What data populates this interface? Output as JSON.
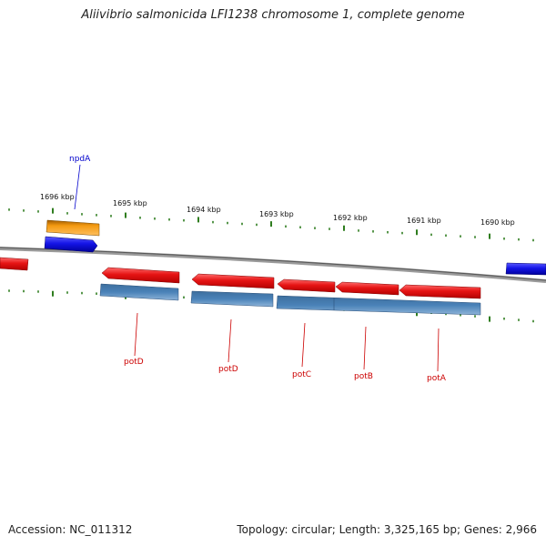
{
  "title": "Aliivibrio salmonicida LFI1238 chromosome 1, complete genome",
  "footer": {
    "accession": "Accession: NC_011312",
    "summary": "Topology: circular; Length: 3,325,165 bp; Genes: 2,966"
  },
  "colors": {
    "backbone": "#8a8a8a",
    "tick": "#2f7d1f",
    "gene_forward_blue": "#1414e6",
    "gene_reverse_red": "#e61414",
    "cds_steelblue": "#4a82b8",
    "other_orange": "#f39a10",
    "label_red": "#cc0000",
    "label_blue": "#0000cc"
  },
  "tick_labels": [
    "1696 kbp",
    "1695 kbp",
    "1694 kbp",
    "1693 kbp",
    "1692 kbp",
    "1691 kbp",
    "1690 kbp"
  ],
  "gene_labels": [
    "npdA",
    "potD",
    "potD",
    "potC",
    "potB",
    "potA"
  ]
}
